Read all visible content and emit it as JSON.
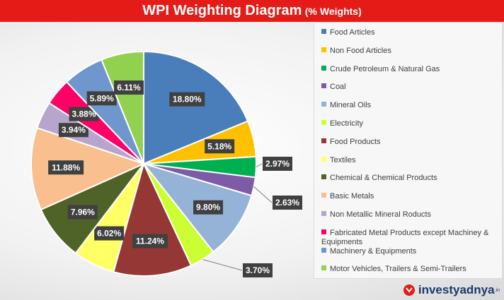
{
  "header": {
    "title": "WPI Weighting Diagram",
    "subtitle": "(% Weights)"
  },
  "logo": {
    "text": "investyadnya",
    "tld": ".in"
  },
  "chart_data": {
    "type": "pie",
    "title": "WPI Weighting Diagram (% Weights)",
    "legend_position": "right",
    "slices": [
      {
        "label": "Food Articles",
        "value": 18.8,
        "display": "18.80%",
        "color": "#4a7ebb"
      },
      {
        "label": "Non Food Articles",
        "value": 5.18,
        "display": "5.18%",
        "color": "#ffc000"
      },
      {
        "label": "Crude Petroleum & Natural Gas",
        "value": 2.97,
        "display": "2.97%",
        "color": "#00b050"
      },
      {
        "label": "Coal",
        "value": 2.63,
        "display": "2.63%",
        "color": "#7d5ba6"
      },
      {
        "label": "Mineral Oils",
        "value": 9.8,
        "display": "9.80%",
        "color": "#95b3d7"
      },
      {
        "label": "Electricity",
        "value": 3.7,
        "display": "3.70%",
        "color": "#ccff33"
      },
      {
        "label": "Food Products",
        "value": 11.24,
        "display": "11.24%",
        "color": "#953735"
      },
      {
        "label": "Textiles",
        "value": 6.02,
        "display": "6.02%",
        "color": "#ffff66"
      },
      {
        "label": "Chemical & Chemical Products",
        "value": 7.96,
        "display": "7.96%",
        "color": "#4f6228"
      },
      {
        "label": "Basic Metals",
        "value": 11.88,
        "display": "11.88%",
        "color": "#fabf8f"
      },
      {
        "label": "Non Metallic Mineral Roducts",
        "value": 3.94,
        "display": "3.94%",
        "color": "#b7a5cd"
      },
      {
        "label": "Fabricated Metal Products except Machiney & Equipments",
        "value": 3.88,
        "display": "3.88%",
        "color": "#ff0066"
      },
      {
        "label": "Machinery & Equipments",
        "value": 5.89,
        "display": "5.89%",
        "color": "#6f97cd"
      },
      {
        "label": "Motor Vehicles,  Trailers & Semi-Trailers",
        "value": 6.11,
        "display": "6.11%",
        "color": "#92d050"
      }
    ]
  }
}
